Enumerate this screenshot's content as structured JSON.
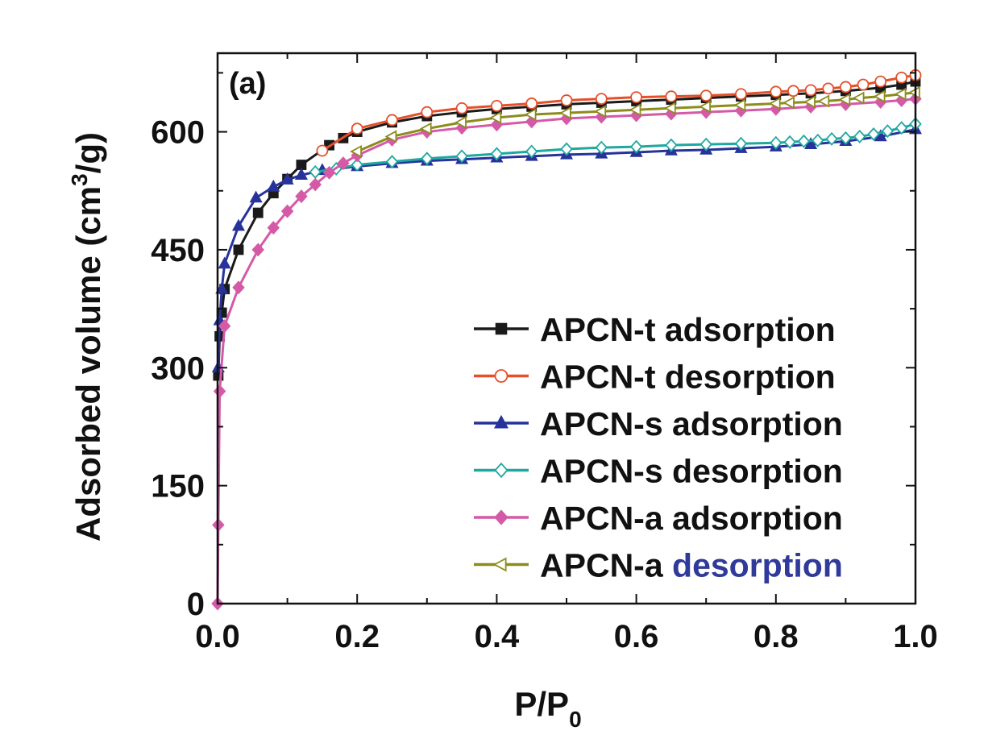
{
  "chart_data": {
    "type": "line",
    "panel_label": "(a)",
    "xlabel": "P/P",
    "xlabel_sub": "0",
    "ylabel": "Adsorbed volume (cm",
    "ylabel_sup": "3",
    "ylabel_end": "/g)",
    "xlim": [
      0.0,
      1.0
    ],
    "ylim": [
      0,
      700
    ],
    "xticks": [
      0.0,
      0.2,
      0.4,
      0.6,
      0.8,
      1.0
    ],
    "xtick_labels": [
      "0.0",
      "0.2",
      "0.4",
      "0.6",
      "0.8",
      "1.0"
    ],
    "yticks": [
      0,
      150,
      300,
      450,
      600
    ],
    "ytick_labels": [
      "0",
      "150",
      "300",
      "450",
      "600"
    ],
    "legend_position": "bottom-right",
    "series": [
      {
        "name": "APCN-t adsorption",
        "name_main": "APCN-t adsorption",
        "name_colored": "",
        "color": "#1a1a1a",
        "marker": "square",
        "filled": true,
        "x": [
          0.001,
          0.003,
          0.006,
          0.01,
          0.03,
          0.058,
          0.08,
          0.1,
          0.12,
          0.16,
          0.18,
          0.2,
          0.25,
          0.3,
          0.35,
          0.4,
          0.45,
          0.5,
          0.55,
          0.6,
          0.65,
          0.7,
          0.75,
          0.8,
          0.85,
          0.9,
          0.95,
          0.98,
          1.0
        ],
        "y": [
          290,
          340,
          370,
          400,
          450,
          497,
          522,
          540,
          558,
          583,
          592,
          600,
          612,
          620,
          625,
          629,
          632,
          635,
          637,
          639,
          641,
          643,
          645,
          647,
          649,
          652,
          656,
          660,
          664
        ]
      },
      {
        "name": "APCN-t desorption",
        "name_main": "APCN-t desorption",
        "name_colored": "",
        "color": "#e5502a",
        "marker": "circle",
        "filled": false,
        "x": [
          1.0,
          0.98,
          0.95,
          0.925,
          0.9,
          0.875,
          0.85,
          0.825,
          0.8,
          0.75,
          0.7,
          0.65,
          0.6,
          0.55,
          0.5,
          0.45,
          0.4,
          0.35,
          0.3,
          0.25,
          0.2,
          0.15
        ],
        "y": [
          672,
          669,
          664,
          660,
          657,
          655,
          653,
          652,
          651,
          648,
          646,
          645,
          644,
          642,
          640,
          636,
          633,
          630,
          625,
          615,
          604,
          576
        ]
      },
      {
        "name": "APCN-s adsorption",
        "name_main": "APCN-s adsorption",
        "name_colored": "",
        "color": "#27339a",
        "marker": "triangle",
        "filled": true,
        "x": [
          0.001,
          0.003,
          0.006,
          0.01,
          0.03,
          0.055,
          0.08,
          0.1,
          0.12,
          0.15,
          0.2,
          0.25,
          0.3,
          0.35,
          0.4,
          0.45,
          0.5,
          0.55,
          0.6,
          0.65,
          0.7,
          0.75,
          0.8,
          0.85,
          0.9,
          0.95,
          1.0
        ],
        "y": [
          300,
          360,
          400,
          432,
          480,
          516,
          530,
          539,
          545,
          551,
          556,
          560,
          563,
          565,
          567,
          569,
          571,
          572,
          574,
          576,
          577,
          579,
          581,
          584,
          588,
          594,
          603
        ]
      },
      {
        "name": "APCN-s desorption",
        "name_main": "APCN-s desorption",
        "name_colored": "",
        "color": "#1fa8a0",
        "marker": "diamond",
        "filled": false,
        "x": [
          1.0,
          0.98,
          0.96,
          0.94,
          0.92,
          0.9,
          0.88,
          0.86,
          0.84,
          0.82,
          0.8,
          0.75,
          0.7,
          0.65,
          0.6,
          0.55,
          0.5,
          0.45,
          0.4,
          0.35,
          0.3,
          0.25,
          0.2,
          0.17,
          0.14
        ],
        "y": [
          610,
          605,
          601,
          597,
          594,
          592,
          591,
          589,
          588,
          587,
          586,
          585,
          584,
          583,
          581,
          580,
          578,
          575,
          572,
          569,
          566,
          562,
          558,
          553,
          549
        ]
      },
      {
        "name": "APCN-a adsorption",
        "name_main": "APCN-a adsorption",
        "name_colored": "",
        "color": "#d45aa8",
        "marker": "diamond",
        "filled": true,
        "x": [
          0.0,
          0.001,
          0.003,
          0.01,
          0.03,
          0.058,
          0.08,
          0.1,
          0.12,
          0.14,
          0.16,
          0.18,
          0.2,
          0.25,
          0.3,
          0.35,
          0.4,
          0.45,
          0.5,
          0.55,
          0.6,
          0.65,
          0.7,
          0.75,
          0.8,
          0.85,
          0.9,
          0.95,
          0.98,
          1.0
        ],
        "y": [
          0,
          100,
          270,
          353,
          402,
          450,
          478,
          499,
          518,
          533,
          548,
          560,
          570,
          590,
          600,
          605,
          609,
          613,
          617,
          619,
          621,
          623,
          625,
          627,
          629,
          632,
          635,
          638,
          640,
          642
        ]
      },
      {
        "name": "APCN-a desorption",
        "name_main": "APCN-a ",
        "name_colored": "desorption",
        "name_colored_color": "#2f3a9a",
        "color": "#8c8c1e",
        "marker": "triangle-left",
        "filled": false,
        "x": [
          1.0,
          0.98,
          0.95,
          0.92,
          0.9,
          0.87,
          0.85,
          0.82,
          0.8,
          0.75,
          0.7,
          0.65,
          0.6,
          0.55,
          0.5,
          0.45,
          0.4,
          0.35,
          0.3,
          0.25,
          0.2
        ],
        "y": [
          650,
          648,
          645,
          643,
          641,
          639,
          638,
          637,
          636,
          634,
          632,
          630,
          628,
          626,
          624,
          622,
          618,
          612,
          604,
          594,
          575
        ]
      }
    ]
  }
}
